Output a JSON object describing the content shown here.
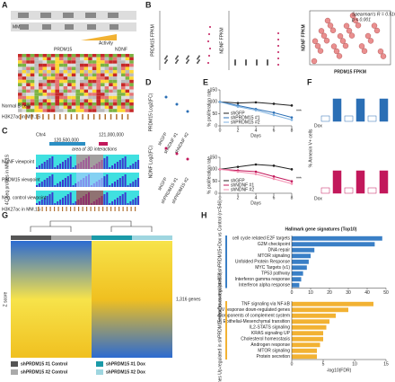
{
  "labels": [
    "A",
    "B",
    "C",
    "D",
    "E",
    "F",
    "G",
    "H"
  ],
  "a": {
    "mm": "MM",
    "normal": "Normal B cells",
    "prdm15": "PRDM15",
    "ndnf": "NDNF",
    "activity": "Activity",
    "h3k": "H3K27ac in MM.1S"
  },
  "b": {
    "y1": "PRDM15 FPKM",
    "y2": "NDNF FPKM",
    "x": "PRDM15 FPKM",
    "y3": "NDNF FPKM",
    "stat1": "Spearman's R = 0.516",
    "stat2": "p < 0.001"
  },
  "c": {
    "chr": "Chr4",
    "pos1": "120,500,000",
    "pos2": "121,000,000",
    "area": "area of 3D interactions",
    "v1": "NDNF viewpoint",
    "v2": "PRDM15 viewpoint",
    "v3": "Neg. control viewpoint",
    "h3k": "H3K27ac in MM.1S",
    "side": "4C-seq profiles in MM.1S"
  },
  "d": {
    "y1": "PRDM15 Log2(FC)",
    "y2": "NDNF Log2(FC)",
    "g1": [
      "shGFP",
      "shNDNF #1",
      "shNDNF #2"
    ],
    "g2": [
      "shGFP",
      "shPRDM15 #1",
      "shPRDM15 #2"
    ]
  },
  "f": {
    "y": "% Annexin V+ cells",
    "dox": "Dox"
  },
  "g": {
    "genes": "1,316 genes",
    "z": "Z score",
    "legend": [
      "shPRDM15 #1 Control",
      "shPRDM15 #2 Control",
      "shPRDM15 #1 Dox",
      "shPRDM15 #2 Dox"
    ],
    "legend_colors": [
      "#555555",
      "#aaaaaa",
      "#1a9aa8",
      "#9fd6e0"
    ]
  },
  "chart_data": [
    {
      "type": "line",
      "x_label": "Days",
      "y_label": "% proliferation rate",
      "annotation": "***",
      "x": [
        0,
        2,
        4,
        6,
        8
      ],
      "xlim": [
        0,
        8
      ],
      "xticks": [
        0,
        2,
        4,
        6,
        8
      ],
      "ylim": [
        0,
        150
      ],
      "yticks": [
        0,
        50,
        100,
        150
      ],
      "series": [
        {
          "name": "shGFP",
          "color": "#222222",
          "values": [
            100,
            95,
            98,
            92,
            85
          ]
        },
        {
          "name": "shPRDM15 #1",
          "color": "#2b6fb5",
          "values": [
            100,
            85,
            70,
            55,
            35
          ]
        },
        {
          "name": "shPRDM15 #2",
          "color": "#7fb2e0",
          "values": [
            100,
            80,
            65,
            45,
            25
          ]
        }
      ]
    },
    {
      "type": "line",
      "x_label": "Days",
      "y_label": "% proliferation rate",
      "annotation": "***",
      "x": [
        0,
        2,
        4,
        6,
        8
      ],
      "xlim": [
        0,
        8
      ],
      "xticks": [
        0,
        2,
        4,
        6,
        8
      ],
      "ylim": [
        0,
        150
      ],
      "yticks": [
        0,
        50,
        100,
        150
      ],
      "series": [
        {
          "name": "shGFP",
          "color": "#222222",
          "values": [
            100,
            110,
            120,
            115,
            100
          ]
        },
        {
          "name": "shNDNF #1",
          "color": "#c2185b",
          "values": [
            100,
            95,
            90,
            70,
            50
          ]
        },
        {
          "name": "shNDNF #2",
          "color": "#f48fb1",
          "values": [
            100,
            90,
            80,
            60,
            40
          ]
        }
      ]
    },
    {
      "type": "hbar",
      "title": "Hallmark gene signatures (Top10)",
      "group": "Genes Down-regulated in shPRDM15+Dox vs Control (n=546)",
      "color": "#3a7fc6",
      "categories": [
        "cell cycle related E2F targets",
        "G2M checkpoint",
        "DNA repair",
        "MTOR signaling",
        "Unfolded Protein Response",
        "MYC Targets (v1)",
        "TP53 pathway",
        "Interferon gamma response",
        "Interferon alpha response"
      ],
      "values": [
        48,
        44,
        12,
        10,
        9,
        8,
        6,
        5,
        4
      ],
      "xlim": [
        0,
        50
      ],
      "xticks": [
        0,
        10,
        20,
        30,
        40,
        50
      ]
    },
    {
      "type": "hbar",
      "group": "Genes Up-regulated in shPRDM15+Dox vs control (n=603)",
      "color": "#f2b233",
      "x_label": "-log10(FDR)",
      "categories": [
        "TNF signaling via NF-kB",
        "UV response down-regulated genes",
        "Components of complement system",
        "Epithelial-Mesenchymal transition",
        "IL2-STATS signaling",
        "KRAS signaling UP",
        "Cholesterol homeostasis",
        "Androgen response",
        "MTOR signaling",
        "Protein secretion"
      ],
      "values": [
        13,
        9,
        7,
        6,
        5.5,
        5,
        5,
        4.5,
        4,
        4
      ],
      "xlim": [
        0,
        15
      ],
      "xticks": [
        0,
        5,
        10,
        15
      ]
    }
  ]
}
